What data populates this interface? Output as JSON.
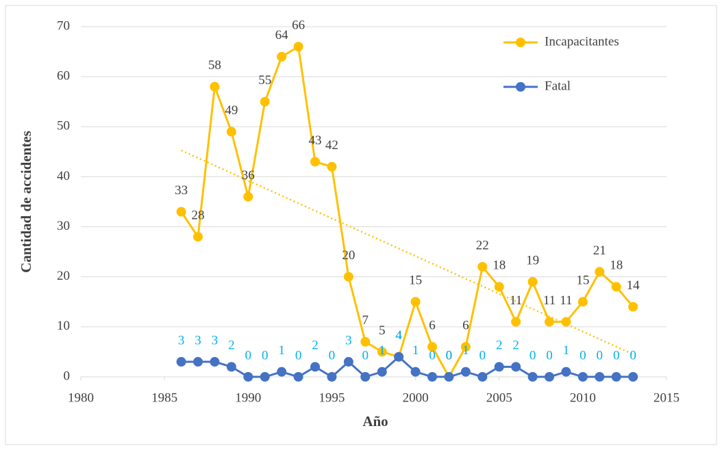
{
  "chart_data": {
    "type": "line",
    "x_label": "Año",
    "y_label": "Cantidad de accidentes",
    "x": [
      1986,
      1987,
      1988,
      1989,
      1990,
      1991,
      1992,
      1993,
      1994,
      1995,
      1996,
      1997,
      1998,
      1999,
      2000,
      2001,
      2002,
      2003,
      2004,
      2005,
      2006,
      2007,
      2008,
      2009,
      2010,
      2011,
      2012,
      2013
    ],
    "series": [
      {
        "name": "Incapacitantes",
        "color": "#FFC000",
        "label_color": "#404040",
        "trendline": true,
        "values": [
          33,
          28,
          58,
          49,
          36,
          55,
          64,
          66,
          43,
          42,
          20,
          7,
          5,
          4,
          15,
          6,
          0,
          6,
          22,
          18,
          11,
          19,
          11,
          11,
          15,
          21,
          18,
          14
        ]
      },
      {
        "name": "Fatal",
        "color": "#4472C4",
        "label_color": "#00B0F0",
        "trendline": false,
        "values": [
          3,
          3,
          3,
          2,
          0,
          0,
          1,
          0,
          2,
          0,
          3,
          0,
          1,
          4,
          1,
          0,
          0,
          1,
          0,
          2,
          2,
          0,
          0,
          1,
          0,
          0,
          0,
          0
        ]
      }
    ],
    "xlim": [
      1980,
      2015
    ],
    "xticks": [
      1980,
      1985,
      1990,
      1995,
      2000,
      2005,
      2010,
      2015
    ],
    "ylim": [
      0,
      70
    ],
    "yticks": [
      0,
      10,
      20,
      30,
      40,
      50,
      60,
      70
    ],
    "grid": true,
    "legend": "top-right"
  }
}
